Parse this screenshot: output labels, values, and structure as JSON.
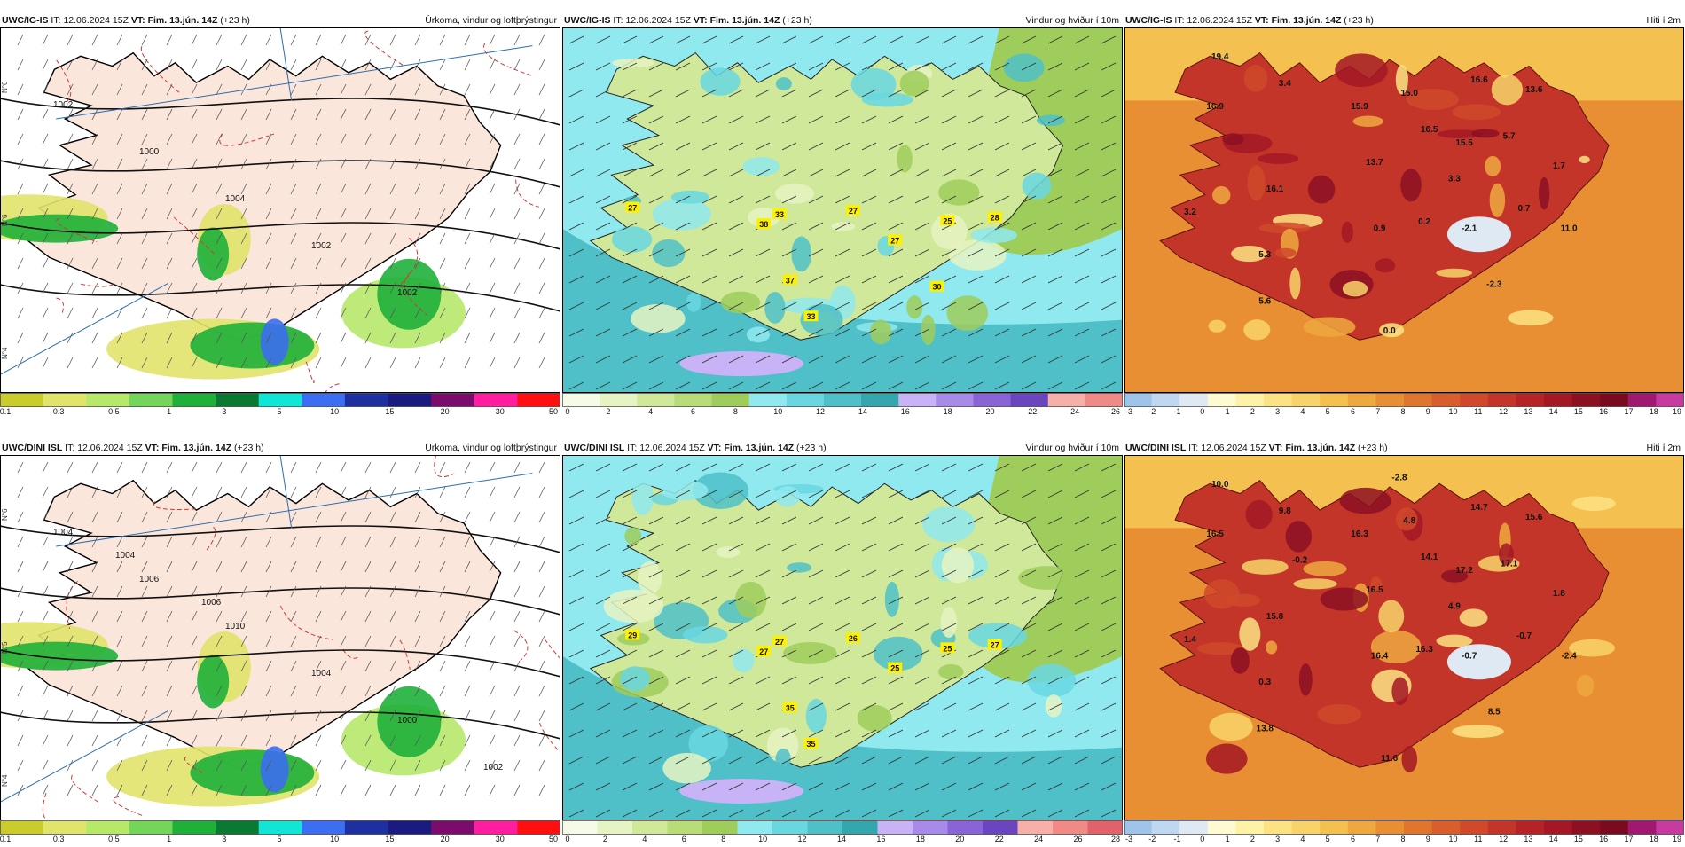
{
  "panels": [
    {
      "id": "p1",
      "model": "UWC/IG-IS",
      "it_label": "IT:",
      "it_value": "12.06.2024 15Z",
      "vt_label": "VT:",
      "vt_value": "Fim. 13.jún. 14Z",
      "lead": "(+23 h)",
      "product": "Úrkoma, vindur og loftþrýstingur",
      "kind": "precip",
      "isobar_labels": [
        "1002",
        "1000",
        "1004",
        "1002",
        "1002"
      ],
      "lat_labels": [
        "N°6",
        "N°6",
        "N°4"
      ],
      "legend_colors": [
        "#c9cc2a",
        "#e1e36a",
        "#b6e86a",
        "#73d65a",
        "#1fb03a",
        "#0a7a32",
        "#11e5d6",
        "#3b6ef0",
        "#1e2fa0",
        "#1a1a80",
        "#7b0c6e",
        "#ff1ea0",
        "#ff0f0f"
      ],
      "legend_ticks": [
        "0.1",
        "0.3",
        "0.5",
        "1",
        "3",
        "5",
        "10",
        "15",
        "20",
        "30",
        "50"
      ],
      "point_labels": []
    },
    {
      "id": "p2",
      "model": "UWC/IG-IS",
      "it_label": "IT:",
      "it_value": "12.06.2024 15Z",
      "vt_label": "VT:",
      "vt_value": "Fim. 13.jún. 14Z",
      "lead": "(+23 h)",
      "product": "Vindur og hviður í 10m",
      "kind": "wind",
      "legend_colors": [
        "#f6fbe8",
        "#e6f3c2",
        "#cfe89a",
        "#b7dc78",
        "#9fcd5c",
        "#8fe9ef",
        "#69d7e0",
        "#4fbfc8",
        "#33a7ad",
        "#c7b3f5",
        "#a88ae8",
        "#8a63d6",
        "#6b45c0",
        "#f7b0a8",
        "#f08a86"
      ],
      "legend_ticks": [
        "0",
        "2",
        "4",
        "6",
        "8",
        "10",
        "12",
        "14",
        "16",
        "18",
        "20",
        "22",
        "24",
        "26"
      ],
      "point_labels": [
        "27",
        "33",
        "38",
        "27",
        "27",
        "25",
        "28",
        "37",
        "33",
        "30"
      ]
    },
    {
      "id": "p3",
      "model": "UWC/IG-IS",
      "it_label": "IT:",
      "it_value": "12.06.2024 15Z",
      "vt_label": "VT:",
      "vt_value": "Fim. 13.jún. 14Z",
      "lead": "(+23 h)",
      "product": "Hiti í 2m",
      "kind": "temp",
      "legend_colors": [
        "#9fc4ea",
        "#bfd7f0",
        "#dfe9f4",
        "#fffbd0",
        "#fdf2a6",
        "#fbe383",
        "#f8d36a",
        "#f4c04f",
        "#efa83f",
        "#e88f34",
        "#e0762e",
        "#d85e2b",
        "#d0492a",
        "#c43529",
        "#b52327",
        "#a31824",
        "#8c0f22",
        "#7a0b1f",
        "#a01870",
        "#c73aa0"
      ],
      "legend_ticks": [
        "-3",
        "-2",
        "-1",
        "0",
        "1",
        "2",
        "3",
        "4",
        "5",
        "6",
        "7",
        "8",
        "9",
        "10",
        "11",
        "12",
        "13",
        "14",
        "15",
        "16",
        "17",
        "18",
        "19"
      ],
      "point_labels": [
        "19.4",
        "3.4",
        "16.9",
        "15.9",
        "15.0",
        "16.6",
        "13.6",
        "16.5",
        "15.5",
        "5.7",
        "13.7",
        "1.7",
        "16.1",
        "3.3",
        "3.2",
        "0.9",
        "0.2",
        "-2.1",
        "0.7",
        "11.0",
        "5.3",
        "-2.3",
        "5.6",
        "0.0"
      ]
    },
    {
      "id": "p4",
      "model": "UWC/DINI ISL",
      "it_label": "IT:",
      "it_value": "12.06.2024 15Z",
      "vt_label": "VT:",
      "vt_value": "Fim. 13.jún. 14Z",
      "lead": "(+23 h)",
      "product": "Úrkoma, vindur og loftþrýstingur",
      "kind": "precip",
      "isobar_labels": [
        "1004",
        "1006",
        "1010",
        "1004",
        "1000",
        "1002",
        "1004",
        "1006"
      ],
      "lat_labels": [
        "N°6",
        "N°5",
        "N°4"
      ],
      "legend_colors": [
        "#c9cc2a",
        "#e1e36a",
        "#b6e86a",
        "#73d65a",
        "#1fb03a",
        "#0a7a32",
        "#11e5d6",
        "#3b6ef0",
        "#1e2fa0",
        "#1a1a80",
        "#7b0c6e",
        "#ff1ea0",
        "#ff0f0f"
      ],
      "legend_ticks": [
        "0.1",
        "0.3",
        "0.5",
        "1",
        "3",
        "5",
        "10",
        "15",
        "20",
        "30",
        "50"
      ],
      "point_labels": []
    },
    {
      "id": "p5",
      "model": "UWC/DINI ISL",
      "it_label": "IT:",
      "it_value": "12.06.2024 15Z",
      "vt_label": "VT:",
      "vt_value": "Fim. 13.jún. 14Z",
      "lead": "(+23 h)",
      "product": "Vindur og hviður í 10m",
      "kind": "wind",
      "legend_colors": [
        "#f6fbe8",
        "#e6f3c2",
        "#cfe89a",
        "#b7dc78",
        "#9fcd5c",
        "#8fe9ef",
        "#69d7e0",
        "#4fbfc8",
        "#33a7ad",
        "#c7b3f5",
        "#a88ae8",
        "#8a63d6",
        "#6b45c0",
        "#f7b0a8",
        "#f08a86",
        "#e0626a"
      ],
      "legend_ticks": [
        "0",
        "2",
        "4",
        "6",
        "8",
        "10",
        "12",
        "14",
        "16",
        "18",
        "20",
        "22",
        "24",
        "26",
        "28"
      ],
      "point_labels": [
        "29",
        "27",
        "27",
        "26",
        "25",
        "25",
        "27",
        "35",
        "35"
      ]
    },
    {
      "id": "p6",
      "model": "UWC/DINI ISL",
      "it_label": "IT:",
      "it_value": "12.06.2024 15Z",
      "vt_label": "VT:",
      "vt_value": "Fim. 13.jún. 14Z",
      "lead": "(+23 h)",
      "product": "Hiti í 2m",
      "kind": "temp",
      "legend_colors": [
        "#9fc4ea",
        "#bfd7f0",
        "#dfe9f4",
        "#fffbd0",
        "#fdf2a6",
        "#fbe383",
        "#f8d36a",
        "#f4c04f",
        "#efa83f",
        "#e88f34",
        "#e0762e",
        "#d85e2b",
        "#d0492a",
        "#c43529",
        "#b52327",
        "#a31824",
        "#8c0f22",
        "#7a0b1f",
        "#a01870",
        "#c73aa0"
      ],
      "legend_ticks": [
        "-3",
        "-2",
        "-1",
        "0",
        "1",
        "2",
        "3",
        "4",
        "5",
        "6",
        "7",
        "8",
        "9",
        "10",
        "11",
        "12",
        "13",
        "14",
        "15",
        "16",
        "17",
        "18",
        "19"
      ],
      "point_labels": [
        "10.0",
        "9.8",
        "16.5",
        "16.3",
        "4.8",
        "14.7",
        "15.6",
        "14.1",
        "17.2",
        "17.1",
        "16.5",
        "1.8",
        "15.8",
        "4.9",
        "1.4",
        "16.4",
        "16.3",
        "-0.7",
        "-0.7",
        "-2.4",
        "0.3",
        "8.5",
        "13.8",
        "11.6",
        "-2.8",
        "-0.2"
      ]
    }
  ]
}
